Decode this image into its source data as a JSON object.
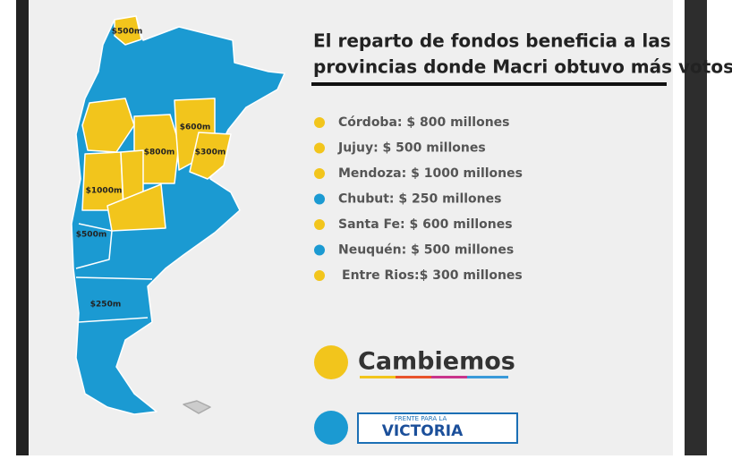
{
  "header": {
    "title_lines": [
      "El reparto de fondos beneficia a las",
      "provincias donde Macri obtuvo más votos"
    ]
  },
  "items": [
    {
      "text": "Córdoba: $ 800 millones",
      "color": "#f2c51c"
    },
    {
      "text": "Jujuy: $ 500 millones",
      "color": "#f2c51c"
    },
    {
      "text": "Mendoza: $ 1000 millones",
      "color": "#f2c51c"
    },
    {
      "text": "Chubut: $ 250 millones",
      "color": "#1b9ad2"
    },
    {
      "text": "Santa Fe: $ 600 millones",
      "color": "#f2c51c"
    },
    {
      "text": "Neuquén: $ 500 millones",
      "color": "#1b9ad2"
    },
    {
      "text": "Entre Rios:$ 300 millones",
      "color": "#f2c51c"
    }
  ],
  "map": {
    "labels": [
      "$500m",
      "$600m",
      "$800m",
      "$300m",
      "$1000m",
      "$500m",
      "$250m"
    ]
  },
  "legend": {
    "cambiemos": "Cambiemos",
    "fpv_top": "FRENTE PARA LA",
    "fpv_main": "VICTORIA"
  }
}
